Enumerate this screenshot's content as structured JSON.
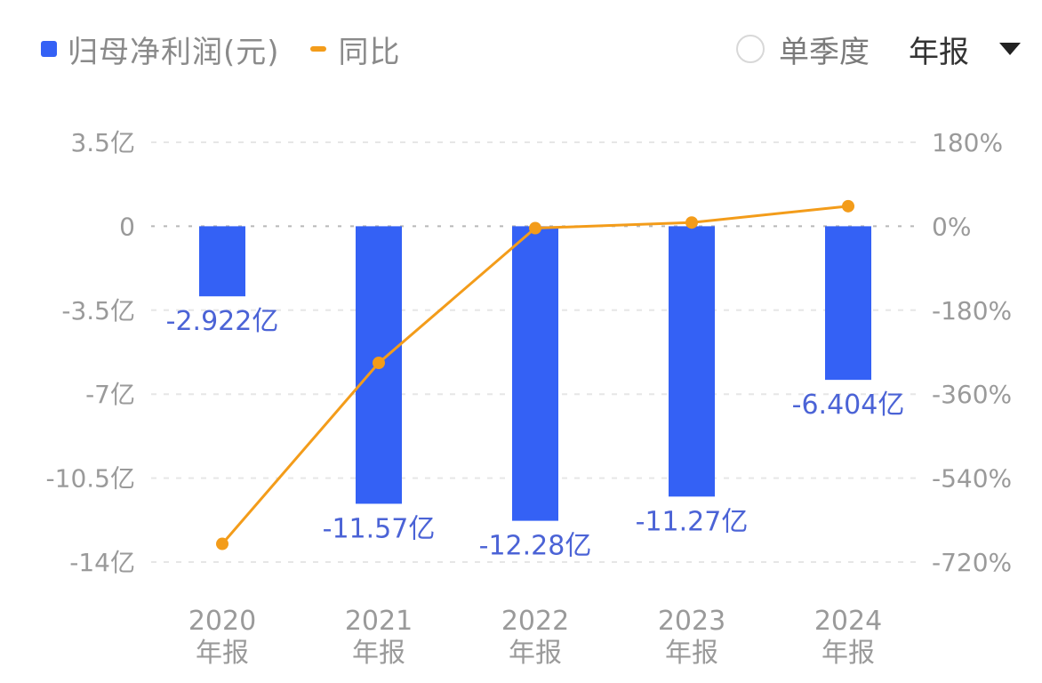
{
  "legend": {
    "bar_label": "归母净利润(元)",
    "line_label": "同比",
    "bar_color": "#3461f5",
    "line_color": "#f39c1a"
  },
  "controls": {
    "radio_label": "单季度",
    "radio_checked": false,
    "dropdown_value": "年报"
  },
  "chart_data": {
    "type": "bar",
    "title": "",
    "categories": [
      "2020\n年报",
      "2021\n年报",
      "2022\n年报",
      "2023\n年报",
      "2024\n年报"
    ],
    "category_years": [
      "2020",
      "2021",
      "2022",
      "2023",
      "2024"
    ],
    "category_suffix": "年报",
    "series": [
      {
        "name": "归母净利润(元)",
        "type": "bar",
        "axis": "left",
        "unit": "亿",
        "values": [
          -2.922,
          -11.57,
          -12.28,
          -11.27,
          -6.404
        ],
        "labels": [
          "-2.922亿",
          "-11.57亿",
          "-12.28亿",
          "-11.27亿",
          "-6.404亿"
        ],
        "color": "#3461f5"
      },
      {
        "name": "同比",
        "type": "line",
        "axis": "right",
        "unit": "%",
        "values": [
          -681,
          -293,
          -4,
          8,
          43
        ],
        "color": "#f39c1a"
      }
    ],
    "y_left": {
      "ticks": [
        3.5,
        0,
        -3.5,
        -7,
        -10.5,
        -14
      ],
      "tick_labels": [
        "3.5亿",
        "0",
        "-3.5亿",
        "-7亿",
        "-10.5亿",
        "-14亿"
      ],
      "ylim": [
        -14,
        3.5
      ]
    },
    "y_right": {
      "ticks": [
        180,
        0,
        -180,
        -360,
        -540,
        -720
      ],
      "tick_labels": [
        "180%",
        "0%",
        "-180%",
        "-360%",
        "-540%",
        "-720%"
      ],
      "ylim": [
        -720,
        180
      ]
    },
    "xlabel": "",
    "ylabel": "",
    "grid": true,
    "legend_position": "top-left"
  }
}
